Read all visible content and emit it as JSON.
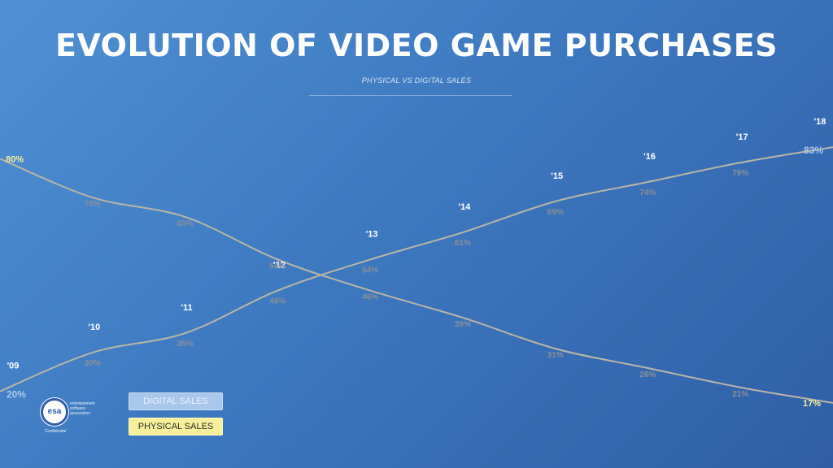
{
  "title": "EVOLUTION OF VIDEO GAME PURCHASES",
  "subtitle": "PHYSICAL VS DIGITAL SALES",
  "legend": {
    "digital": "DIGITAL SALES",
    "physical": "PHYSICAL SALES"
  },
  "logo": {
    "mark": "esa",
    "line1": "entertainment",
    "line2": "software",
    "line3": "association",
    "caption": "Confidential"
  },
  "colors": {
    "digital_label": "#a9c7ea",
    "physical_label": "#f6f09a",
    "line": "#b9b6a6",
    "value_label": "#8a9098"
  },
  "chart_data": {
    "type": "line",
    "categories": [
      "'09",
      "'10",
      "'11",
      "'12",
      "'13",
      "'14",
      "'15",
      "'16",
      "'17",
      "'18"
    ],
    "series": [
      {
        "name": "DIGITAL SALES",
        "values": [
          20,
          30,
          35,
          46,
          54,
          61,
          69,
          74,
          79,
          83
        ],
        "labels": [
          "20%",
          "30%",
          "35%",
          "46%",
          "54%",
          "61%",
          "69%",
          "74%",
          "79%",
          "83%"
        ]
      },
      {
        "name": "PHYSICAL SALES",
        "values": [
          80,
          70,
          65,
          54,
          46,
          39,
          31,
          26,
          21,
          17
        ],
        "labels": [
          "80%",
          "70%",
          "65%",
          "54%",
          "46%",
          "39%",
          "31%",
          "26%",
          "21%",
          "17%"
        ]
      }
    ],
    "ylim": [
      0,
      100
    ],
    "grid": false,
    "legend_position": "bottom-left"
  }
}
